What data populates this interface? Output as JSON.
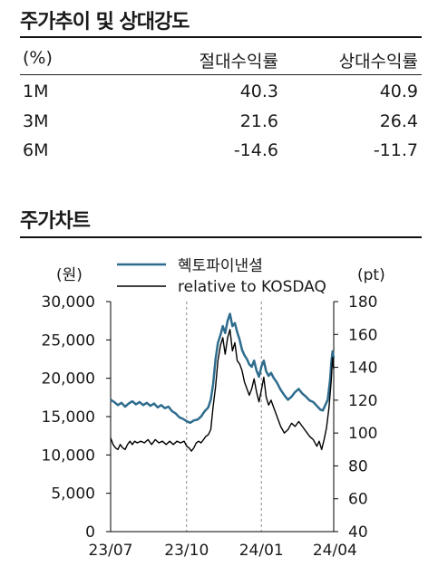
{
  "table": {
    "title": "주가추이 및 상대강도",
    "headers": [
      "(%)",
      "절대수익률",
      "상대수익률"
    ],
    "rows": [
      {
        "period": "1M",
        "absolute": "40.3",
        "relative": "40.9"
      },
      {
        "period": "3M",
        "absolute": "21.6",
        "relative": "26.4"
      },
      {
        "period": "6M",
        "absolute": "-14.6",
        "relative": "-11.7"
      }
    ]
  },
  "chart_section": {
    "title": "주가차트"
  },
  "chart_data": {
    "type": "line",
    "ylabel_left": "(원)",
    "ylabel_right": "(pt)",
    "ylim_left": [
      0,
      30000
    ],
    "ylim_right": [
      40,
      180
    ],
    "yticks_left": [
      "30,000",
      "25,000",
      "20,000",
      "15,000",
      "10,000",
      "5,000",
      "0"
    ],
    "yticks_right": [
      "180",
      "160",
      "140",
      "120",
      "100",
      "80",
      "60",
      "40"
    ],
    "xticks": [
      "23/07",
      "23/10",
      "24/01",
      "24/04"
    ],
    "grid": "vertical dashed at x ticks",
    "legend_position": "top-center",
    "colors": {
      "price": "#2e6c8e",
      "relative": "#000000"
    },
    "series": [
      {
        "name": "혝토파이낸셜",
        "axis": "left",
        "values": [
          [
            0,
            17200
          ],
          [
            3,
            16900
          ],
          [
            6,
            16500
          ],
          [
            9,
            16800
          ],
          [
            12,
            16300
          ],
          [
            15,
            16700
          ],
          [
            18,
            17000
          ],
          [
            21,
            16600
          ],
          [
            24,
            16900
          ],
          [
            27,
            16500
          ],
          [
            30,
            16800
          ],
          [
            33,
            16400
          ],
          [
            36,
            16700
          ],
          [
            39,
            16200
          ],
          [
            42,
            16500
          ],
          [
            45,
            16100
          ],
          [
            48,
            16300
          ],
          [
            51,
            15700
          ],
          [
            54,
            15400
          ],
          [
            57,
            14900
          ],
          [
            60,
            14700
          ],
          [
            63,
            14400
          ],
          [
            66,
            14200
          ],
          [
            69,
            14500
          ],
          [
            72,
            14600
          ],
          [
            75,
            15000
          ],
          [
            78,
            15700
          ],
          [
            81,
            16200
          ],
          [
            83,
            17200
          ],
          [
            85,
            19200
          ],
          [
            87,
            22500
          ],
          [
            89,
            24600
          ],
          [
            91,
            25600
          ],
          [
            93,
            26800
          ],
          [
            95,
            25900
          ],
          [
            97,
            27500
          ],
          [
            99,
            28400
          ],
          [
            101,
            26800
          ],
          [
            103,
            27200
          ],
          [
            105,
            26000
          ],
          [
            107,
            25000
          ],
          [
            109,
            23700
          ],
          [
            111,
            23000
          ],
          [
            113,
            22500
          ],
          [
            115,
            21800
          ],
          [
            117,
            21500
          ],
          [
            119,
            22300
          ],
          [
            121,
            21000
          ],
          [
            123,
            20200
          ],
          [
            125,
            21500
          ],
          [
            127,
            22300
          ],
          [
            129,
            20900
          ],
          [
            131,
            20300
          ],
          [
            133,
            20700
          ],
          [
            135,
            20100
          ],
          [
            138,
            19400
          ],
          [
            141,
            18500
          ],
          [
            144,
            17800
          ],
          [
            147,
            17200
          ],
          [
            150,
            17600
          ],
          [
            153,
            18200
          ],
          [
            156,
            18600
          ],
          [
            159,
            18000
          ],
          [
            162,
            17600
          ],
          [
            165,
            17100
          ],
          [
            168,
            16900
          ],
          [
            171,
            16400
          ],
          [
            174,
            15900
          ],
          [
            176,
            15800
          ],
          [
            178,
            16500
          ],
          [
            180,
            17200
          ],
          [
            182,
            19800
          ],
          [
            183,
            22000
          ],
          [
            184,
            23500
          ],
          [
            185,
            22600
          ]
        ]
      },
      {
        "name": "relative to KOSDAQ",
        "axis": "right",
        "values": [
          [
            0,
            97
          ],
          [
            2,
            93
          ],
          [
            4,
            91
          ],
          [
            6,
            90
          ],
          [
            8,
            93
          ],
          [
            10,
            91
          ],
          [
            12,
            90
          ],
          [
            14,
            93
          ],
          [
            16,
            95
          ],
          [
            18,
            93
          ],
          [
            20,
            95
          ],
          [
            22,
            94
          ],
          [
            25,
            95
          ],
          [
            28,
            94
          ],
          [
            31,
            96
          ],
          [
            34,
            93
          ],
          [
            37,
            96
          ],
          [
            40,
            94
          ],
          [
            43,
            95
          ],
          [
            46,
            93
          ],
          [
            49,
            95
          ],
          [
            52,
            93
          ],
          [
            55,
            95
          ],
          [
            58,
            94
          ],
          [
            61,
            95
          ],
          [
            63,
            92
          ],
          [
            65,
            91
          ],
          [
            67,
            89
          ],
          [
            69,
            91
          ],
          [
            71,
            94
          ],
          [
            73,
            95
          ],
          [
            75,
            94
          ],
          [
            77,
            96
          ],
          [
            79,
            98
          ],
          [
            81,
            99
          ],
          [
            83,
            102
          ],
          [
            85,
            116
          ],
          [
            87,
            128
          ],
          [
            89,
            144
          ],
          [
            91,
            153
          ],
          [
            93,
            158
          ],
          [
            95,
            148
          ],
          [
            97,
            158
          ],
          [
            99,
            163
          ],
          [
            101,
            150
          ],
          [
            103,
            155
          ],
          [
            105,
            144
          ],
          [
            107,
            142
          ],
          [
            109,
            138
          ],
          [
            111,
            131
          ],
          [
            113,
            127
          ],
          [
            115,
            123
          ],
          [
            117,
            127
          ],
          [
            119,
            133
          ],
          [
            121,
            125
          ],
          [
            123,
            119
          ],
          [
            125,
            126
          ],
          [
            127,
            134
          ],
          [
            129,
            122
          ],
          [
            131,
            117
          ],
          [
            133,
            120
          ],
          [
            135,
            116
          ],
          [
            138,
            110
          ],
          [
            141,
            104
          ],
          [
            144,
            100
          ],
          [
            147,
            102
          ],
          [
            150,
            106
          ],
          [
            153,
            104
          ],
          [
            156,
            107
          ],
          [
            159,
            104
          ],
          [
            162,
            101
          ],
          [
            165,
            98
          ],
          [
            168,
            96
          ],
          [
            171,
            92
          ],
          [
            173,
            95
          ],
          [
            175,
            90
          ],
          [
            177,
            96
          ],
          [
            179,
            103
          ],
          [
            181,
            115
          ],
          [
            183,
            132
          ],
          [
            184,
            146
          ],
          [
            185,
            139
          ]
        ]
      }
    ]
  }
}
